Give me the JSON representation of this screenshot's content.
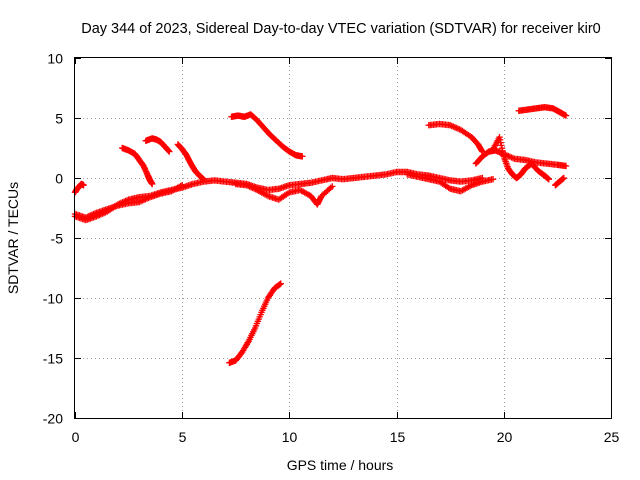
{
  "chart_data": {
    "type": "scatter",
    "title": "Day 344 of 2023, Sidereal Day-to-day VTEC variation (SDTVAR) for receiver kir0",
    "xlabel": "GPS time / hours",
    "ylabel": "SDTVAR / TECUs",
    "xlim": [
      0,
      25
    ],
    "ylim": [
      -20,
      10
    ],
    "xticks": [
      0,
      5,
      10,
      15,
      20,
      25
    ],
    "yticks": [
      -20,
      -15,
      -10,
      -5,
      0,
      5,
      10
    ],
    "x_tick_labels": [
      "0",
      "5",
      "10",
      "15",
      "20",
      "25"
    ],
    "y_tick_labels": [
      "-20",
      "-15",
      "-10",
      "-5",
      "0",
      "5",
      "10"
    ],
    "grid": true,
    "marker": "+",
    "color": "#ff0000",
    "series": [
      {
        "name": "arc-main",
        "points": [
          [
            0,
            -3.2
          ],
          [
            0.5,
            -3.5
          ],
          [
            1,
            -3.2
          ],
          [
            1.5,
            -2.8
          ],
          [
            2,
            -2.2
          ],
          [
            2.5,
            -1.8
          ],
          [
            3,
            -1.6
          ],
          [
            3.5,
            -1.5
          ],
          [
            4,
            -1.2
          ],
          [
            4.5,
            -1.0
          ],
          [
            5,
            -0.8
          ],
          [
            5.5,
            -0.5
          ],
          [
            6,
            -0.3
          ],
          [
            6.5,
            -0.2
          ],
          [
            7,
            -0.3
          ],
          [
            7.5,
            -0.4
          ],
          [
            8,
            -0.5
          ],
          [
            8.5,
            -0.8
          ],
          [
            9,
            -1.0
          ],
          [
            9.5,
            -0.9
          ],
          [
            10,
            -0.6
          ],
          [
            10.5,
            -0.5
          ],
          [
            11,
            -0.4
          ],
          [
            11.5,
            -0.2
          ],
          [
            12,
            0
          ],
          [
            12.5,
            -0.1
          ],
          [
            13,
            0
          ],
          [
            13.5,
            0.1
          ],
          [
            14,
            0.2
          ],
          [
            14.5,
            0.3
          ],
          [
            15,
            0.5
          ],
          [
            15.5,
            0.5
          ],
          [
            16,
            0.3
          ],
          [
            16.5,
            0.2
          ],
          [
            17,
            0
          ],
          [
            17.5,
            -0.2
          ],
          [
            18,
            -0.3
          ],
          [
            18.5,
            -0.2
          ],
          [
            19,
            0
          ]
        ]
      },
      {
        "name": "arc-early-low",
        "points": [
          [
            0,
            -3.0
          ],
          [
            0.5,
            -3.3
          ],
          [
            1,
            -2.9
          ],
          [
            1.5,
            -2.6
          ],
          [
            2,
            -2.3
          ],
          [
            2.5,
            -2.1
          ],
          [
            3,
            -2.0
          ],
          [
            3.5,
            -1.6
          ],
          [
            4,
            -1.3
          ],
          [
            4.5,
            -1.1
          ],
          [
            5,
            -0.6
          ]
        ]
      },
      {
        "name": "arc-start-spike",
        "points": [
          [
            0,
            -1.2
          ],
          [
            0.1,
            -0.9
          ],
          [
            0.2,
            -0.7
          ],
          [
            0.3,
            -0.5
          ],
          [
            0.4,
            -0.6
          ]
        ]
      },
      {
        "name": "arc-2",
        "points": [
          [
            2.2,
            2.5
          ],
          [
            2.5,
            2.3
          ],
          [
            2.8,
            2.0
          ],
          [
            3.0,
            1.5
          ],
          [
            3.2,
            1.0
          ],
          [
            3.4,
            0.2
          ],
          [
            3.5,
            -0.2
          ],
          [
            3.6,
            -0.5
          ]
        ]
      },
      {
        "name": "arc-3",
        "points": [
          [
            3.3,
            3.1
          ],
          [
            3.6,
            3.3
          ],
          [
            3.8,
            3.2
          ],
          [
            4.0,
            3.0
          ],
          [
            4.2,
            2.6
          ],
          [
            4.4,
            2.2
          ]
        ]
      },
      {
        "name": "arc-4",
        "points": [
          [
            4.8,
            2.8
          ],
          [
            5.0,
            2.4
          ],
          [
            5.2,
            1.9
          ],
          [
            5.4,
            1.2
          ],
          [
            5.6,
            0.6
          ],
          [
            5.8,
            0.2
          ],
          [
            6.0,
            -0.1
          ]
        ]
      },
      {
        "name": "arc-dip",
        "points": [
          [
            7.5,
            -0.5
          ],
          [
            8,
            -0.6
          ],
          [
            8.5,
            -1.0
          ],
          [
            9,
            -1.5
          ],
          [
            9.5,
            -1.8
          ],
          [
            10,
            -1.2
          ],
          [
            10.5,
            -1.0
          ],
          [
            11,
            -1.5
          ],
          [
            11.3,
            -2.2
          ],
          [
            11.5,
            -1.5
          ],
          [
            12,
            -0.7
          ]
        ]
      },
      {
        "name": "arc-wave",
        "points": [
          [
            15.5,
            0.3
          ],
          [
            16,
            0.1
          ],
          [
            16.5,
            -0.1
          ],
          [
            17,
            -0.3
          ],
          [
            17.5,
            -0.9
          ],
          [
            18,
            -1.1
          ],
          [
            18.5,
            -0.6
          ],
          [
            19,
            -0.3
          ],
          [
            19.5,
            -0.1
          ]
        ]
      },
      {
        "name": "arc-mid-high",
        "points": [
          [
            7.3,
            5.1
          ],
          [
            7.6,
            5.2
          ],
          [
            7.9,
            5.1
          ],
          [
            8.2,
            5.3
          ],
          [
            8.5,
            4.8
          ],
          [
            8.8,
            4.2
          ],
          [
            9.1,
            3.6
          ],
          [
            9.4,
            3.1
          ],
          [
            9.7,
            2.6
          ],
          [
            10.0,
            2.2
          ],
          [
            10.3,
            1.9
          ],
          [
            10.6,
            1.8
          ]
        ]
      },
      {
        "name": "arc-steep",
        "points": [
          [
            7.2,
            -15.4
          ],
          [
            7.5,
            -15.2
          ],
          [
            7.8,
            -14.5
          ],
          [
            8.1,
            -13.6
          ],
          [
            8.4,
            -12.5
          ],
          [
            8.7,
            -11.2
          ],
          [
            9.0,
            -10.0
          ],
          [
            9.3,
            -9.2
          ],
          [
            9.6,
            -8.8
          ]
        ]
      },
      {
        "name": "arc-late-high",
        "points": [
          [
            16.5,
            4.4
          ],
          [
            17,
            4.5
          ],
          [
            17.5,
            4.4
          ],
          [
            18,
            4.0
          ],
          [
            18.5,
            3.4
          ],
          [
            18.8,
            2.8
          ],
          [
            19.0,
            2.2
          ]
        ]
      },
      {
        "name": "arc-late",
        "points": [
          [
            18.7,
            1.2
          ],
          [
            19,
            1.8
          ],
          [
            19.3,
            2.2
          ],
          [
            19.6,
            2.3
          ],
          [
            20,
            2.0
          ],
          [
            20.5,
            1.6
          ],
          [
            21,
            1.5
          ],
          [
            21.5,
            1.3
          ],
          [
            22,
            1.2
          ],
          [
            22.5,
            1.1
          ],
          [
            22.9,
            1.0
          ]
        ]
      },
      {
        "name": "arc-late-loop",
        "points": [
          [
            19.5,
            2.4
          ],
          [
            19.8,
            3.4
          ],
          [
            20,
            1.8
          ],
          [
            20.2,
            0.8
          ],
          [
            20.4,
            0.3
          ],
          [
            20.6,
            0
          ],
          [
            20.8,
            0.3
          ],
          [
            21.0,
            0.8
          ],
          [
            21.3,
            1.2
          ],
          [
            21.6,
            0.6
          ],
          [
            21.9,
            0.2
          ],
          [
            22.1,
            -0.1
          ]
        ]
      },
      {
        "name": "arc-late-top",
        "points": [
          [
            20.7,
            5.6
          ],
          [
            21.1,
            5.7
          ],
          [
            21.5,
            5.8
          ],
          [
            21.9,
            5.9
          ],
          [
            22.3,
            5.8
          ],
          [
            22.6,
            5.5
          ],
          [
            22.9,
            5.2
          ]
        ]
      },
      {
        "name": "arc-end",
        "points": [
          [
            22.4,
            -0.6
          ],
          [
            22.6,
            -0.3
          ],
          [
            22.8,
            0
          ]
        ]
      }
    ]
  }
}
